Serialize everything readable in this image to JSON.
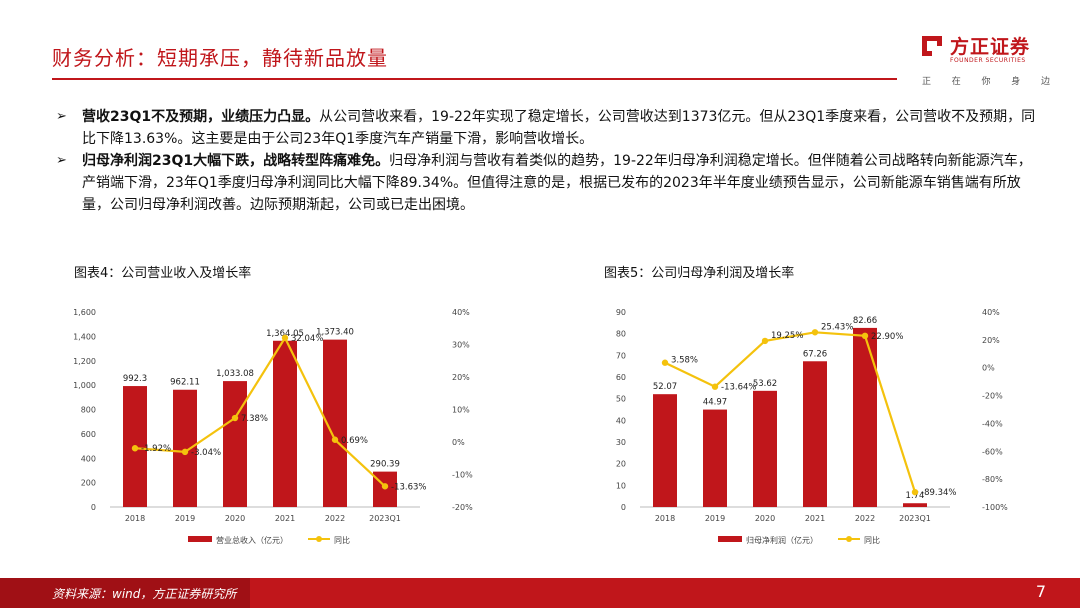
{
  "header": {
    "title": "财务分析：短期承压，静待新品放量",
    "brand_cn": "方正证券",
    "brand_en": "FOUNDER SECURITIES",
    "slogan": [
      "正",
      "在",
      "你",
      "身",
      "边"
    ]
  },
  "bullets": [
    {
      "bold": "营收23Q1不及预期，业绩压力凸显。",
      "text": "从公司营收来看，19-22年实现了稳定增长，公司营收达到1373亿元。但从23Q1季度来看，公司营收不及预期，同比下降13.63%。这主要是由于公司23年Q1季度汽车产销量下滑，影响营收增长。"
    },
    {
      "bold": "归母净利润23Q1大幅下跌，战略转型阵痛难免。",
      "text": "归母净利润与营收有着类似的趋势，19-22年归母净利润稳定增长。但伴随着公司战略转向新能源汽车，产销端下滑，23年Q1季度归母净利润同比大幅下降89.34%。但值得注意的是，根据已发布的2023年半年度业绩预告显示，公司新能源车销售端有所放量，公司归母净利润改善。边际预期渐起，公司或已走出困境。"
    }
  ],
  "footer": {
    "source": "资料来源：wind，方正证券研究所",
    "page": "7"
  },
  "colors": {
    "accent": "#c0161b",
    "bar": "#c0161b",
    "line": "#f4c20d"
  },
  "chart_data": [
    {
      "caption": "图表4：公司营业收入及增长率",
      "type": "bar+line",
      "categories": [
        "2018",
        "2019",
        "2020",
        "2021",
        "2022",
        "2023Q1"
      ],
      "series": [
        {
          "name": "营业总收入（亿元）",
          "type": "bar",
          "axis": "left",
          "values": [
            992.3,
            962.11,
            1033.08,
            1364.05,
            1373.4,
            290.39
          ],
          "labels": [
            "992.3",
            "962.11",
            "1,033.08",
            "1,364.05",
            "1,373.40",
            "290.39"
          ]
        },
        {
          "name": "同比",
          "type": "line",
          "axis": "right",
          "values": [
            -1.92,
            -3.04,
            7.38,
            32.04,
            0.69,
            -13.63
          ],
          "labels": [
            "-1.92%",
            "-3.04%",
            "7.38%",
            "32.04%",
            "0.69%",
            "-13.63%"
          ]
        }
      ],
      "left_axis": {
        "min": 0,
        "max": 1600,
        "ticks": [
          0,
          200,
          400,
          600,
          800,
          1000,
          1200,
          1400,
          1600
        ],
        "tick_labels": [
          "0",
          "200",
          "400",
          "600",
          "800",
          "1,000",
          "1,200",
          "1,400",
          "1,600"
        ]
      },
      "right_axis": {
        "min": -20,
        "max": 40,
        "ticks": [
          -20,
          -10,
          0,
          10,
          20,
          30,
          40
        ],
        "tick_labels": [
          "-20%",
          "-10%",
          "0%",
          "10%",
          "20%",
          "30%",
          "40%"
        ]
      }
    },
    {
      "caption": "图表5：公司归母净利润及增长率",
      "type": "bar+line",
      "categories": [
        "2018",
        "2019",
        "2020",
        "2021",
        "2022",
        "2023Q1"
      ],
      "series": [
        {
          "name": "归母净利润（亿元）",
          "type": "bar",
          "axis": "left",
          "values": [
            52.07,
            44.97,
            53.62,
            67.26,
            82.66,
            1.74
          ],
          "labels": [
            "52.07",
            "44.97",
            "53.62",
            "67.26",
            "82.66",
            "1.74"
          ]
        },
        {
          "name": "同比",
          "type": "line",
          "axis": "right",
          "values": [
            3.58,
            -13.64,
            19.25,
            25.43,
            22.9,
            -89.34
          ],
          "labels": [
            "3.58%",
            "-13.64%",
            "19.25%",
            "25.43%",
            "22.90%",
            "-89.34%"
          ]
        }
      ],
      "left_axis": {
        "min": 0,
        "max": 90,
        "ticks": [
          0,
          10,
          20,
          30,
          40,
          50,
          60,
          70,
          80,
          90
        ],
        "tick_labels": [
          "0",
          "10",
          "20",
          "30",
          "40",
          "50",
          "60",
          "70",
          "80",
          "90"
        ]
      },
      "right_axis": {
        "min": -100,
        "max": 40,
        "ticks": [
          -100,
          -80,
          -60,
          -40,
          -20,
          0,
          20,
          40
        ],
        "tick_labels": [
          "-100%",
          "-80%",
          "-60%",
          "-40%",
          "-20%",
          "0%",
          "20%",
          "40%"
        ]
      }
    }
  ]
}
